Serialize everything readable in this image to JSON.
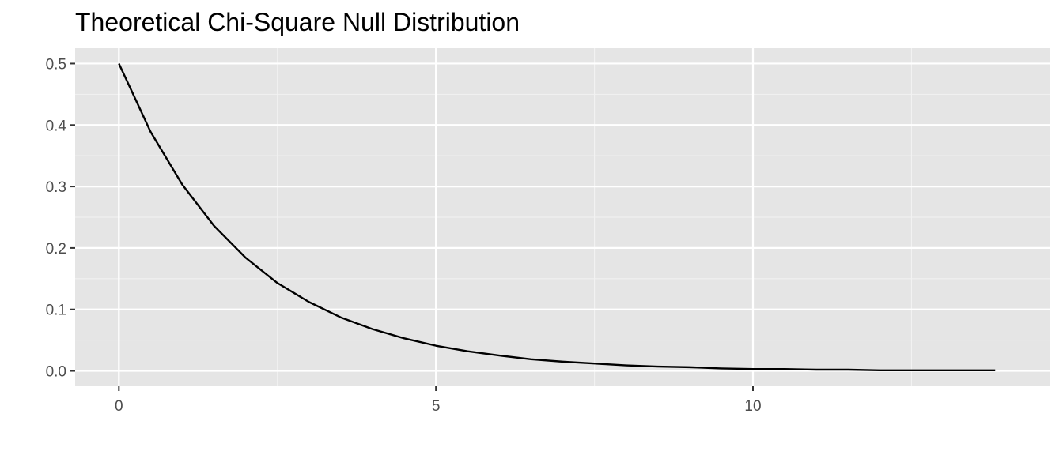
{
  "chart_data": {
    "type": "line",
    "title": "Theoretical Chi-Square Null Distribution",
    "xlabel": "",
    "ylabel": "",
    "xlim": [
      -0.69,
      14.69
    ],
    "ylim": [
      -0.025,
      0.525
    ],
    "x_ticks": [
      0,
      5,
      10
    ],
    "x_tick_labels": [
      "0",
      "5",
      "10"
    ],
    "x_minor_ticks": [
      2.5,
      7.5,
      12.5
    ],
    "y_ticks": [
      0.0,
      0.1,
      0.2,
      0.3,
      0.4,
      0.5
    ],
    "y_tick_labels": [
      "0.0",
      "0.1",
      "0.2",
      "0.3",
      "0.4",
      "0.5"
    ],
    "y_minor_ticks": [
      0.05,
      0.15,
      0.25,
      0.35,
      0.45
    ],
    "grid": true,
    "legend": "none",
    "series": [
      {
        "x": [
          0,
          0.5,
          1,
          1.5,
          2,
          2.5,
          3,
          3.5,
          4,
          4.5,
          5,
          5.5,
          6,
          6.5,
          7,
          7.5,
          8,
          8.5,
          9,
          9.5,
          10,
          10.5,
          11,
          11.5,
          12,
          12.5,
          13,
          13.5,
          13.82
        ],
        "y": [
          0.5,
          0.389,
          0.303,
          0.236,
          0.184,
          0.143,
          0.112,
          0.087,
          0.068,
          0.053,
          0.041,
          0.032,
          0.025,
          0.019,
          0.015,
          0.012,
          0.009,
          0.007,
          0.006,
          0.004,
          0.003,
          0.003,
          0.002,
          0.002,
          0.001,
          0.001,
          0.001,
          0.001,
          0.001
        ],
        "color": "#000000"
      }
    ],
    "colors": {
      "panel_background": "#e5e5e5",
      "grid_major": "#ffffff",
      "grid_minor": "#f2f2f2",
      "tick_text": "#4d4d4d",
      "tick_mark": "#333333"
    }
  }
}
